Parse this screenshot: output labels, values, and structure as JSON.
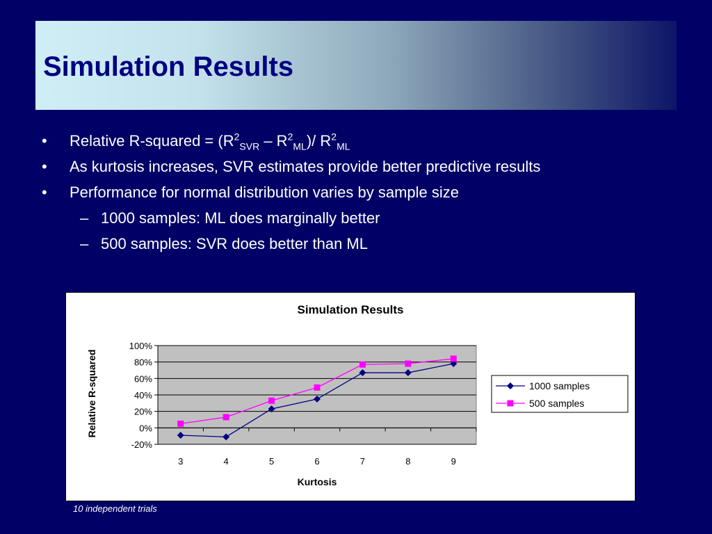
{
  "slide": {
    "title": "Simulation Results",
    "bullets": [
      {
        "level": 1,
        "marker": "•",
        "parts": [
          {
            "t": "Relative R-squared = (R"
          },
          {
            "t": "2",
            "sup": true
          },
          {
            "t": "SVR",
            "sub": true
          },
          {
            "t": " – R"
          },
          {
            "t": "2",
            "sup": true
          },
          {
            "t": "ML",
            "sub": true
          },
          {
            "t": ")/ R"
          },
          {
            "t": "2",
            "sup": true
          },
          {
            "t": "ML",
            "sub": true
          }
        ]
      },
      {
        "level": 1,
        "marker": "•",
        "parts": [
          {
            "t": "As kurtosis increases, SVR estimates provide better predictive results"
          }
        ]
      },
      {
        "level": 1,
        "marker": "•",
        "parts": [
          {
            "t": "Performance for normal distribution varies by sample size"
          }
        ]
      },
      {
        "level": 2,
        "marker": "–",
        "parts": [
          {
            "t": "1000 samples: ML does marginally better"
          }
        ]
      },
      {
        "level": 2,
        "marker": "–",
        "parts": [
          {
            "t": "500 samples: SVR does better than ML"
          }
        ]
      }
    ],
    "footnote": "10 independent trials"
  },
  "chart_data": {
    "type": "line",
    "title": "Simulation Results",
    "xlabel": "Kurtosis",
    "ylabel": "Relative R-squared",
    "categories": [
      "3",
      "4",
      "5",
      "6",
      "7",
      "8",
      "9"
    ],
    "ylim": [
      -0.2,
      1.0
    ],
    "yticks": [
      -0.2,
      0,
      0.2,
      0.4,
      0.6,
      0.8,
      1.0
    ],
    "ytick_labels": [
      "-20%",
      "0%",
      "20%",
      "40%",
      "60%",
      "80%",
      "100%"
    ],
    "grid": true,
    "plot_background": "#c0c0c0",
    "legend_position": "right",
    "series": [
      {
        "name": "1000 samples",
        "values": [
          -0.09,
          -0.11,
          0.23,
          0.35,
          0.67,
          0.67,
          0.78
        ],
        "color": "#000080",
        "marker": "diamond"
      },
      {
        "name": "500 samples",
        "values": [
          0.05,
          0.13,
          0.33,
          0.49,
          0.77,
          0.78,
          0.84
        ],
        "color": "#ff00ff",
        "marker": "square"
      }
    ]
  }
}
